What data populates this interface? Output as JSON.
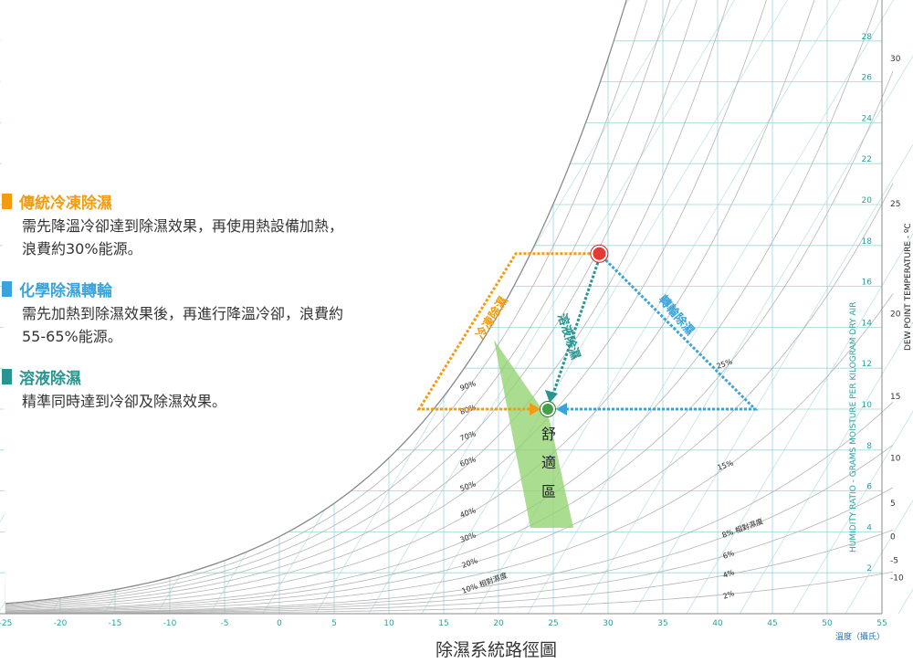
{
  "legend": [
    {
      "title": "傳統冷凍除濕",
      "desc_line1": "需先降溫冷卻達到除濕效果，再使用熱設備加熱，",
      "desc_line2": "浪費約30%能源。",
      "color": "#f39c12"
    },
    {
      "title": "化學除濕轉輪",
      "desc_line1": "需先加熱到除濕效果後，再進行降溫冷卻，浪費約",
      "desc_line2": "55-65%能源。",
      "color": "#3aa3dc"
    },
    {
      "title": "溶液除濕",
      "desc_line1": "精準同時達到冷卻及除濕效果。",
      "desc_line2": "",
      "color": "#2a9490"
    }
  ],
  "caption": "除濕系統路徑圖",
  "chart_data": {
    "type": "psychrometric",
    "x_axis": {
      "label": "溫度（攝氏）",
      "ticks": [
        -25,
        -20,
        -15,
        -10,
        -5,
        0,
        5,
        10,
        15,
        20,
        25,
        30,
        35,
        40,
        45,
        50,
        55
      ]
    },
    "humidity_ratio_axis": {
      "label": "HUMIDITY RATIO - GRAMS MOISTURE PER KILOGRAM DRY AIR",
      "ticks": [
        2,
        4,
        6,
        8,
        10,
        12,
        14,
        16,
        18,
        20,
        22,
        24,
        26,
        28
      ]
    },
    "dew_point_axis": {
      "label": "DEW POINT TEMPERATURE - ºC",
      "ticks": [
        -10,
        -5,
        0,
        5,
        10,
        15,
        20,
        25,
        30
      ]
    },
    "rh_labels_left": [
      "90%",
      "80%",
      "70%",
      "60%",
      "50%",
      "40%",
      "30%",
      "20%",
      "10% 相對濕度"
    ],
    "rh_labels_right": [
      "25%",
      "15%",
      "8% 相對濕度",
      "6%",
      "4%",
      "2%"
    ],
    "comfort_zone_label": [
      "舒",
      "適",
      "區"
    ],
    "paths": [
      {
        "name": "冷凍除濕",
        "color": "#f39c12"
      },
      {
        "name": "溶液除濕",
        "color": "#2a9490"
      },
      {
        "name": "轉輪除濕",
        "color": "#3aa3dc"
      }
    ],
    "points": {
      "start": {
        "t": 29.2,
        "w": 17.6,
        "color": "#e53935"
      },
      "target": {
        "t": 24.5,
        "w": 10.0,
        "color": "#43a047"
      }
    }
  }
}
